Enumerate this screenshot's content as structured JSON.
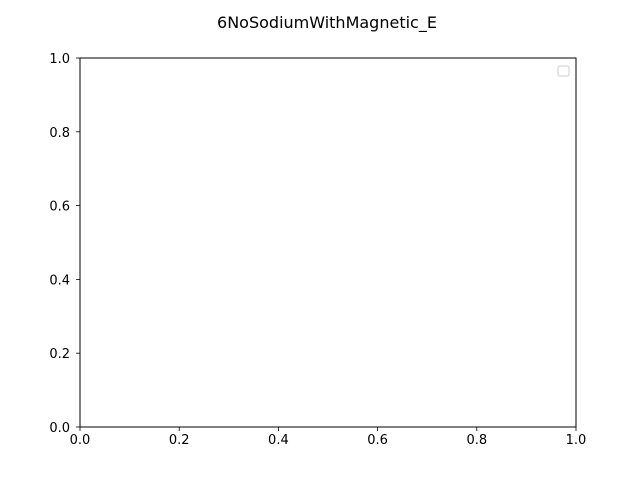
{
  "chart_data": {
    "type": "line",
    "title": "6NoSodiumWithMagnetic_E",
    "xlabel": "",
    "ylabel": "",
    "xlim": [
      0.0,
      1.0
    ],
    "ylim": [
      0.0,
      1.0
    ],
    "x_ticks": [
      "0.0",
      "0.2",
      "0.4",
      "0.6",
      "0.8",
      "1.0"
    ],
    "y_ticks": [
      "0.0",
      "0.2",
      "0.4",
      "0.6",
      "0.8",
      "1.0"
    ],
    "series": [],
    "grid": false,
    "legend": {
      "placement": "upper right",
      "entries": []
    },
    "colors": {
      "background": "#ffffff",
      "axes_edge": "#000000",
      "legend_edge": "#cccccc"
    }
  }
}
